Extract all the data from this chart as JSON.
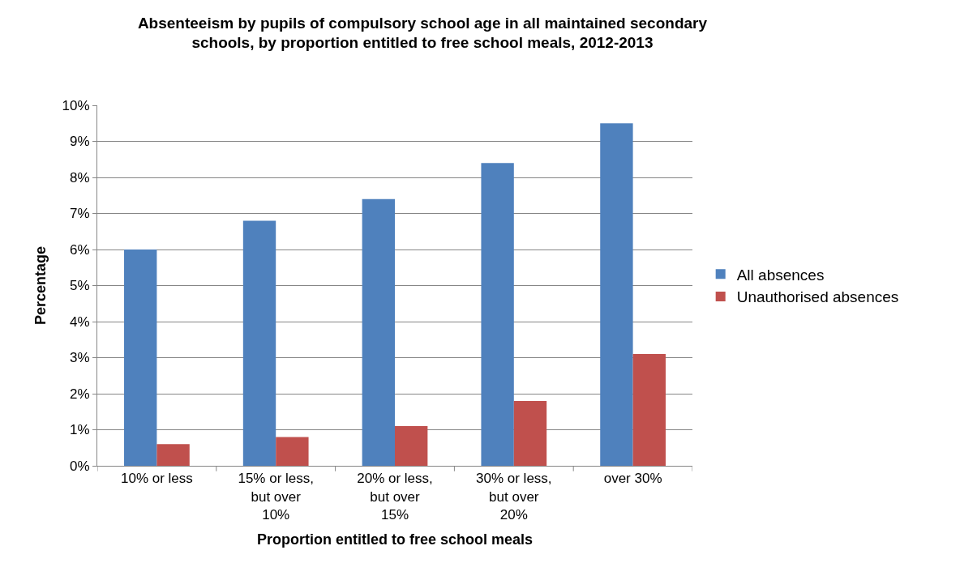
{
  "chart_data": {
    "type": "bar",
    "title": "Absenteeism by pupils of compulsory school age in all maintained secondary\nschools, by proportion entitled to free school meals, 2012-2013",
    "xlabel": "Proportion entitled to free school meals",
    "ylabel": "Percentage",
    "categories": [
      "10% or less",
      "15% or less,\nbut over\n10%",
      "20% or less,\nbut over\n15%",
      "30% or less,\nbut over\n20%",
      "over 30%"
    ],
    "series": [
      {
        "name": "All absences",
        "color": "#4f81bd",
        "values": [
          6.0,
          6.8,
          7.4,
          8.4,
          9.5
        ]
      },
      {
        "name": "Unauthorised absences",
        "color": "#c0504d",
        "values": [
          0.6,
          0.8,
          1.1,
          1.8,
          3.1
        ]
      }
    ],
    "ylim": [
      0,
      10
    ],
    "yticks": [
      {
        "value": 0,
        "label": "0%"
      },
      {
        "value": 1,
        "label": "1%"
      },
      {
        "value": 2,
        "label": "2%"
      },
      {
        "value": 3,
        "label": "3%"
      },
      {
        "value": 4,
        "label": "4%"
      },
      {
        "value": 5,
        "label": "5%"
      },
      {
        "value": 6,
        "label": "6%"
      },
      {
        "value": 7,
        "label": "7%"
      },
      {
        "value": 8,
        "label": "8%"
      },
      {
        "value": 9,
        "label": "9%"
      },
      {
        "value": 10,
        "label": "10%"
      }
    ],
    "grid": "y",
    "legend": "right"
  }
}
